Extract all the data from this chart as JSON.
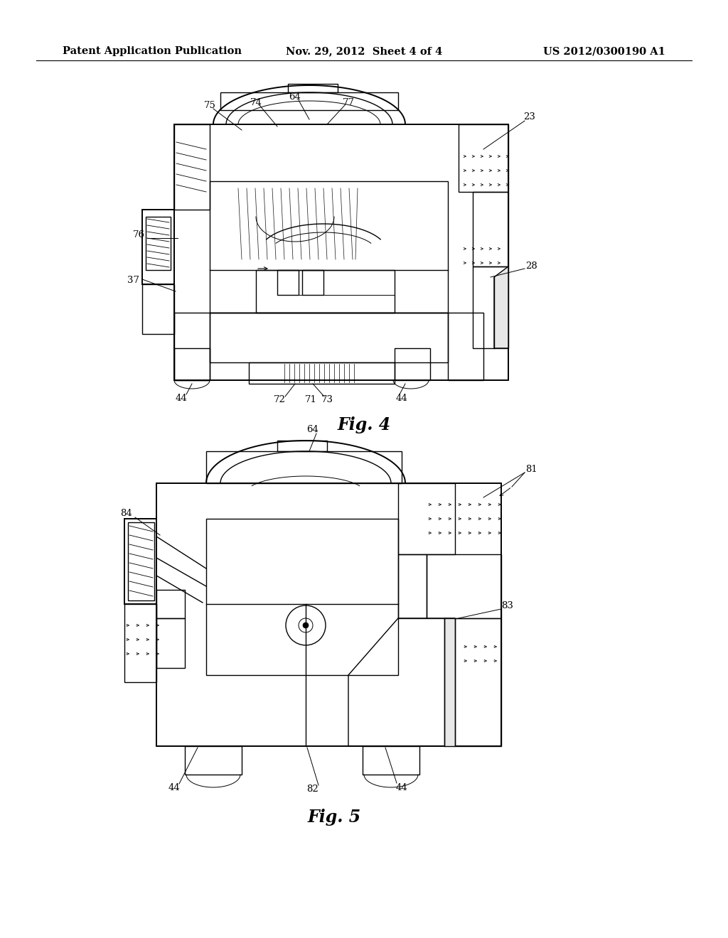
{
  "background_color": "#ffffff",
  "header": {
    "left": "Patent Application Publication",
    "center": "Nov. 29, 2012  Sheet 4 of 4",
    "right": "US 2012/0300190 A1",
    "fontsize": 10.5
  },
  "fig4": {
    "label": "Fig. 4",
    "label_fontsize": 17
  },
  "fig5": {
    "label": "Fig. 5",
    "label_fontsize": 17
  }
}
